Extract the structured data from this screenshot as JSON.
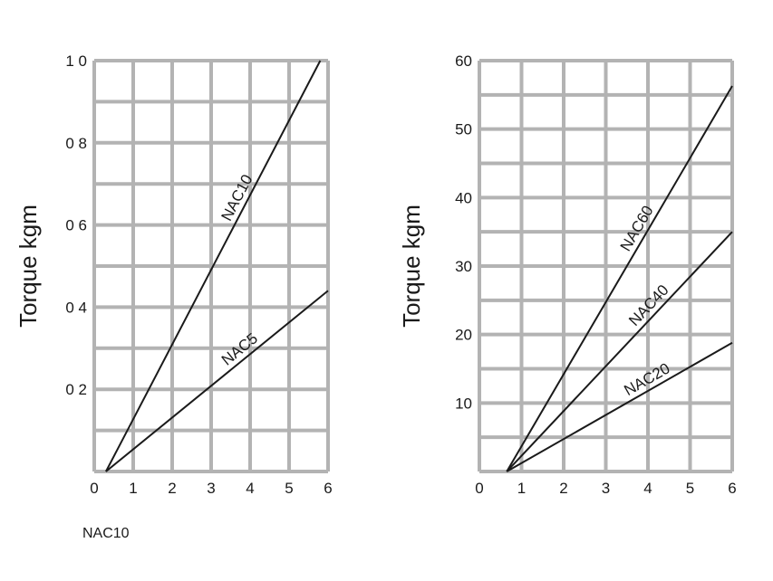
{
  "chart_data": [
    {
      "type": "line",
      "ylabel": "Torque kgm",
      "xlabel": "",
      "xlim": [
        0,
        6
      ],
      "ylim": [
        0,
        1.0
      ],
      "x_ticks": [
        "0",
        "1",
        "2",
        "3",
        "4",
        "5",
        "6"
      ],
      "y_ticks": [
        "0 2",
        "0 4",
        "0 6",
        "0 8",
        "1 0"
      ],
      "y_tick_values": [
        0.2,
        0.4,
        0.6,
        0.8,
        1.0
      ],
      "series": [
        {
          "name": "NAC10",
          "points": [
            [
              0.3,
              0
            ],
            [
              5.8,
              1.0
            ]
          ],
          "label_at": 3.9
        },
        {
          "name": "NAC5",
          "points": [
            [
              0.3,
              0
            ],
            [
              6.0,
              0.44
            ]
          ],
          "label_at": 3.9
        }
      ]
    },
    {
      "type": "line",
      "ylabel": "Torque kgm",
      "xlabel": "",
      "xlim": [
        0,
        6
      ],
      "ylim": [
        0,
        60
      ],
      "x_ticks": [
        "0",
        "1",
        "2",
        "3",
        "4",
        "5",
        "6"
      ],
      "y_ticks": [
        "10",
        "20",
        "30",
        "40",
        "50",
        "60"
      ],
      "y_tick_values": [
        10,
        20,
        30,
        40,
        50,
        60
      ],
      "series": [
        {
          "name": "NAC60",
          "points": [
            [
              0.65,
              0
            ],
            [
              6.0,
              56.3
            ]
          ],
          "label_at": 3.95
        },
        {
          "name": "NAC40",
          "points": [
            [
              0.65,
              0
            ],
            [
              6.0,
              35.0
            ]
          ],
          "label_at": 4.2
        },
        {
          "name": "NAC20",
          "points": [
            [
              0.65,
              0
            ],
            [
              6.0,
              18.8
            ]
          ],
          "label_at": 4.1
        }
      ]
    }
  ],
  "footnote": "NAC10"
}
